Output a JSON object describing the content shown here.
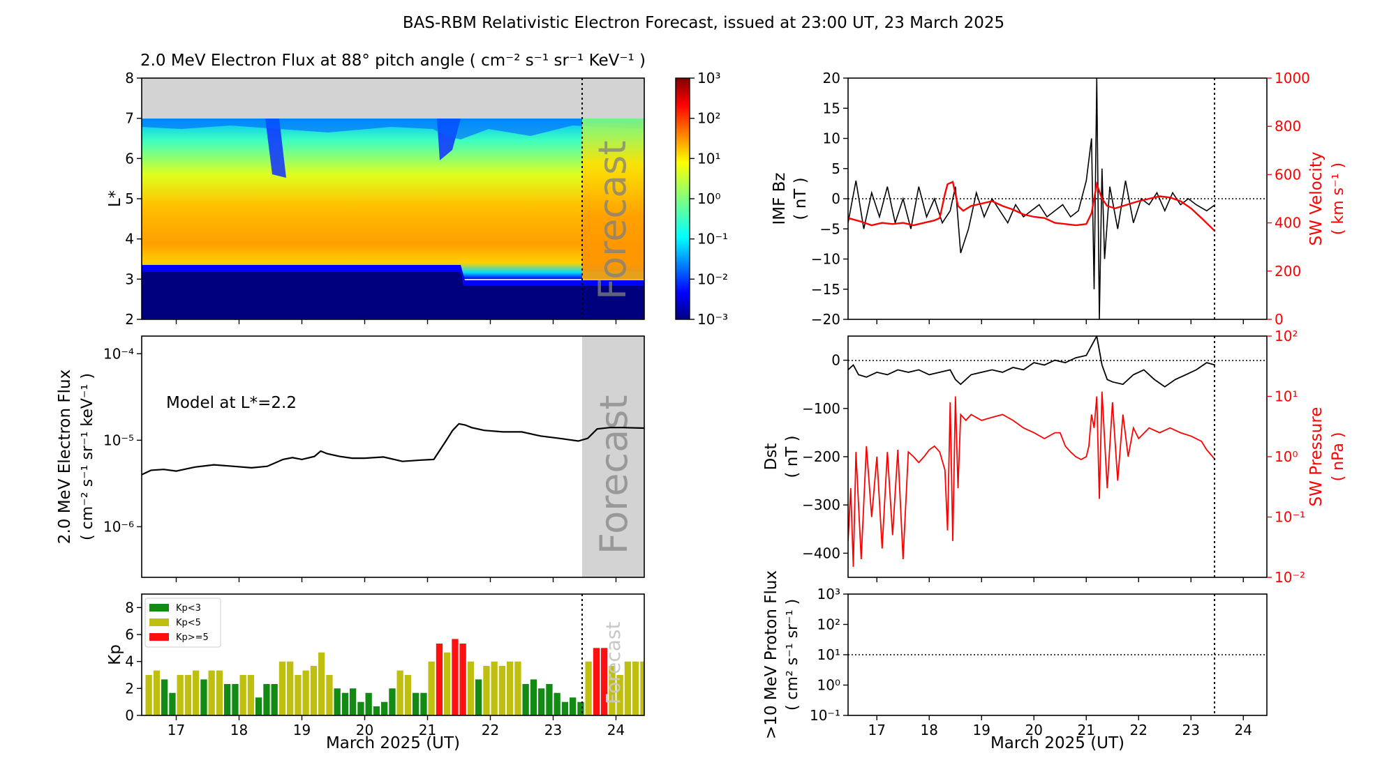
{
  "figure": {
    "title": "BAS-RBM Relativistic Electron Forecast, issued at 23:00 UT, 23 March 2025",
    "xlabel": "March 2025 (UT)"
  },
  "panels": {
    "spectrogram": {
      "title": "2.0 MeV Electron Flux at 88° pitch angle ( cm⁻² s⁻¹ sr⁻¹ KeV⁻¹ )",
      "ylabel": "L*",
      "forecast_label": "Forecast",
      "colorbar_ticks": [
        "10⁻³",
        "10⁻²",
        "10⁻¹",
        "10⁰",
        "10¹",
        "10²",
        "10³"
      ]
    },
    "flux": {
      "ylabel_line1": "2.0 MeV Electron Flux",
      "ylabel_line2": "( cm⁻² s⁻¹ sr⁻¹ keV⁻¹ )",
      "annotation": "Model at L*=2.2",
      "forecast_label": "Forecast"
    },
    "kp": {
      "ylabel": "Kp",
      "forecast_label": "Forecast",
      "legend": [
        {
          "label": "Kp<3",
          "color": "#138a13"
        },
        {
          "label": "Kp<5",
          "color": "#bfbf0f"
        },
        {
          "label": "Kp>=5",
          "color": "#ff1010"
        }
      ]
    },
    "imf": {
      "ylabel_line1": "IMF Bz",
      "ylabel_line2": "( nT )",
      "ylabel2_line1": "SW Velocity",
      "ylabel2_line2": "( km s⁻¹ )"
    },
    "dst": {
      "ylabel_line1": "Dst",
      "ylabel_line2": "( nT )",
      "ylabel2_line1": "SW Pressure",
      "ylabel2_line2": "( nPa )"
    },
    "proton": {
      "ylabel_line1": ">10 MeV Proton Flux",
      "ylabel_line2": "( cm² s⁻¹ sr⁻¹ )"
    }
  },
  "colors": {
    "velocity": "#ff0000",
    "pressure": "#ff0000",
    "bz": "#000000",
    "forecast_shade": "#d3d3d3"
  },
  "chart_data": [
    {
      "type": "heatmap",
      "title": "2.0 MeV Electron Flux at 88° pitch angle",
      "ylabel": "L*",
      "x_ticks": [
        "17",
        "18",
        "19",
        "20",
        "21",
        "22",
        "23",
        "24"
      ],
      "xlim": [
        16.45,
        24.45
      ],
      "ylim": [
        2,
        8
      ],
      "y_ticks": [
        "2",
        "3",
        "4",
        "5",
        "6",
        "7",
        "8"
      ],
      "color_scale": "log",
      "color_range": [
        0.001,
        1000
      ],
      "forecast_start": 23.46,
      "upper_boundary_L": 7.0,
      "peak_L": [
        [
          16.45,
          5.05
        ],
        [
          18.4,
          4.9
        ],
        [
          18.5,
          4.6
        ],
        [
          21.2,
          4.45
        ],
        [
          21.3,
          4.1
        ],
        [
          24.45,
          3.9
        ]
      ],
      "inner_edge_L": [
        [
          16.45,
          3.25
        ],
        [
          21.9,
          3.2
        ],
        [
          22.1,
          2.9
        ],
        [
          24.45,
          2.9
        ]
      ],
      "dropout_periods": [
        [
          18.4,
          18.7
        ],
        [
          21.2,
          21.35
        ]
      ]
    },
    {
      "type": "line",
      "title": "Model at L*=2.2",
      "yscale": "log",
      "ylim": [
        2.6e-07,
        0.00016
      ],
      "y_ticks": [
        "10⁻⁶",
        "10⁻⁵",
        "10⁻⁴"
      ],
      "x_ticks": [
        "17",
        "18",
        "19",
        "20",
        "21",
        "22",
        "23",
        "24"
      ],
      "forecast_start": 23.46,
      "x": [
        16.45,
        16.6,
        16.8,
        17.0,
        17.3,
        17.6,
        17.9,
        18.2,
        18.45,
        18.7,
        18.85,
        19.0,
        19.2,
        19.3,
        19.4,
        19.6,
        19.8,
        20.0,
        20.3,
        20.6,
        20.9,
        21.1,
        21.3,
        21.4,
        21.5,
        21.6,
        21.7,
        21.9,
        22.2,
        22.5,
        22.8,
        23.1,
        23.4,
        23.55,
        23.7,
        23.9,
        24.1,
        24.45
      ],
      "y": [
        4e-06,
        4.5e-06,
        4.6e-06,
        4.4e-06,
        4.9e-06,
        5.2e-06,
        5e-06,
        4.8e-06,
        5e-06,
        6e-06,
        6.3e-06,
        6e-06,
        6.5e-06,
        7.5e-06,
        7e-06,
        6.5e-06,
        6.2e-06,
        6.2e-06,
        6.4e-06,
        5.7e-06,
        5.9e-06,
        6e-06,
        1e-05,
        1.3e-05,
        1.55e-05,
        1.5e-05,
        1.4e-05,
        1.3e-05,
        1.25e-05,
        1.25e-05,
        1.12e-05,
        1.05e-05,
        9.8e-06,
        1.05e-05,
        1.35e-05,
        1.4e-05,
        1.4e-05,
        1.38e-05
      ]
    },
    {
      "type": "bar",
      "title": "Kp",
      "ylim": [
        0,
        9
      ],
      "y_ticks": [
        "0",
        "2",
        "4",
        "6",
        "8"
      ],
      "x_ticks": [
        "17",
        "18",
        "19",
        "20",
        "21",
        "22",
        "23",
        "24"
      ],
      "forecast_start": 23.46,
      "bar_start": 16.5,
      "bar_width_days": 0.125,
      "values": [
        3,
        3.33,
        2.67,
        1.67,
        3,
        3,
        3.33,
        2.67,
        3.33,
        3.33,
        2.33,
        2.33,
        3,
        3,
        1.33,
        2.33,
        2.33,
        4,
        4,
        3,
        3.33,
        3.67,
        4.67,
        3,
        2,
        1.67,
        2,
        1,
        1.67,
        0.67,
        1,
        2,
        3.33,
        3,
        1.67,
        1.67,
        4,
        5.33,
        4.67,
        5.67,
        5.33,
        4,
        2.67,
        3.67,
        4,
        3.67,
        4,
        4,
        2.33,
        2.67,
        2,
        2.33,
        1.67,
        1,
        1.33,
        1,
        4,
        5,
        5,
        3.67,
        3,
        4,
        4,
        4
      ]
    },
    {
      "type": "line",
      "title": "IMF Bz / SW Velocity",
      "ylabel": "IMF Bz ( nT )",
      "ylim": [
        -20,
        20
      ],
      "y_ticks": [
        "−20",
        "−15",
        "−10",
        "−5",
        "0",
        "5",
        "10",
        "15",
        "20"
      ],
      "y2label": "SW Velocity ( km s⁻¹ )",
      "y2lim": [
        0,
        1000
      ],
      "y2_ticks": [
        "0",
        "200",
        "400",
        "600",
        "800",
        "1000"
      ],
      "x_ticks": [
        "17",
        "18",
        "19",
        "20",
        "21",
        "22",
        "23",
        "24"
      ],
      "forecast_start": 23.46,
      "series": [
        {
          "name": "IMF Bz",
          "x": [
            16.45,
            16.6,
            16.75,
            16.9,
            17.05,
            17.2,
            17.35,
            17.5,
            17.65,
            17.8,
            17.95,
            18.1,
            18.25,
            18.4,
            18.5,
            18.6,
            18.75,
            18.9,
            19.05,
            19.2,
            19.35,
            19.5,
            19.65,
            19.8,
            19.95,
            20.1,
            20.25,
            20.4,
            20.55,
            20.7,
            20.85,
            21.0,
            21.1,
            21.15,
            21.2,
            21.25,
            21.3,
            21.35,
            21.45,
            21.6,
            21.75,
            21.9,
            22.05,
            22.2,
            22.35,
            22.5,
            22.65,
            22.8,
            22.95,
            23.1,
            23.3,
            23.46
          ],
          "y": [
            -4,
            3,
            -5,
            1,
            -3,
            2,
            -4,
            0,
            -5,
            2,
            -3,
            0,
            -4,
            -2,
            2,
            -9,
            -5,
            1,
            -3,
            0,
            -2,
            -4,
            -1,
            -3,
            -2,
            -1,
            -3,
            -2,
            -1,
            -3,
            -2,
            3,
            10,
            -15,
            20,
            -20,
            5,
            -10,
            2,
            -5,
            3,
            -4,
            0,
            -1,
            1,
            -2,
            1,
            -1,
            0,
            -1,
            -2,
            -1
          ]
        },
        {
          "name": "SW Velocity",
          "x": [
            16.45,
            16.7,
            16.9,
            17.1,
            17.3,
            17.5,
            17.7,
            17.9,
            18.1,
            18.2,
            18.3,
            18.35,
            18.45,
            18.55,
            18.65,
            18.8,
            19.0,
            19.2,
            19.4,
            19.6,
            19.8,
            20.0,
            20.2,
            20.4,
            20.6,
            20.8,
            21.0,
            21.1,
            21.2,
            21.3,
            21.4,
            21.55,
            21.7,
            21.85,
            22.0,
            22.2,
            22.4,
            22.6,
            22.8,
            23.0,
            23.2,
            23.46
          ],
          "y": [
            420,
            405,
            390,
            400,
            395,
            400,
            390,
            400,
            410,
            420,
            520,
            560,
            570,
            470,
            450,
            470,
            480,
            490,
            470,
            455,
            435,
            425,
            420,
            400,
            395,
            390,
            395,
            440,
            560,
            500,
            470,
            460,
            470,
            480,
            490,
            500,
            510,
            505,
            490,
            460,
            420,
            365
          ]
        }
      ]
    },
    {
      "type": "line",
      "title": "Dst / SW Pressure",
      "ylabel": "Dst ( nT )",
      "ylim": [
        -450,
        50
      ],
      "y_ticks": [
        "−400",
        "−300",
        "−200",
        "−100",
        "0"
      ],
      "y2label": "SW Pressure ( nPa )",
      "y2scale": "log",
      "y2lim": [
        0.01,
        100
      ],
      "y2_ticks": [
        "10⁻²",
        "10⁻¹",
        "10⁰",
        "10¹",
        "10²"
      ],
      "x_ticks": [
        "17",
        "18",
        "19",
        "20",
        "21",
        "22",
        "23",
        "24"
      ],
      "forecast_start": 23.46,
      "series": [
        {
          "name": "Dst",
          "x": [
            16.45,
            16.55,
            16.65,
            16.8,
            17.0,
            17.2,
            17.4,
            17.6,
            17.8,
            18.0,
            18.2,
            18.4,
            18.5,
            18.6,
            18.8,
            19.0,
            19.2,
            19.4,
            19.6,
            19.8,
            20.0,
            20.2,
            20.4,
            20.6,
            20.8,
            21.0,
            21.1,
            21.15,
            21.2,
            21.3,
            21.4,
            21.5,
            21.7,
            21.9,
            22.1,
            22.3,
            22.5,
            22.7,
            22.9,
            23.1,
            23.3,
            23.46
          ],
          "y": [
            -20,
            -10,
            -30,
            -35,
            -25,
            -30,
            -20,
            -25,
            -20,
            -30,
            -25,
            -20,
            -40,
            -50,
            -30,
            -25,
            -20,
            -25,
            -15,
            -20,
            -5,
            -10,
            0,
            -5,
            5,
            10,
            30,
            40,
            50,
            -10,
            -40,
            -45,
            -50,
            -30,
            -20,
            -40,
            -55,
            -40,
            -30,
            -20,
            -5,
            -10
          ]
        },
        {
          "name": "SW Pressure",
          "x": [
            16.45,
            16.5,
            16.55,
            16.6,
            16.7,
            16.8,
            16.9,
            17.0,
            17.1,
            17.2,
            17.3,
            17.4,
            17.5,
            17.6,
            17.7,
            17.8,
            17.9,
            18.0,
            18.1,
            18.2,
            18.3,
            18.35,
            18.4,
            18.45,
            18.5,
            18.55,
            18.6,
            18.7,
            18.8,
            19.0,
            19.2,
            19.4,
            19.6,
            19.8,
            20.0,
            20.2,
            20.4,
            20.5,
            20.6,
            20.7,
            20.8,
            20.9,
            21.0,
            21.05,
            21.1,
            21.15,
            21.2,
            21.25,
            21.3,
            21.4,
            21.5,
            21.6,
            21.7,
            21.8,
            21.9,
            22.0,
            22.2,
            22.4,
            22.6,
            22.8,
            23.0,
            23.2,
            23.3,
            23.46
          ],
          "y": [
            0.04,
            0.3,
            0.015,
            1.2,
            0.02,
            1.5,
            0.1,
            1.0,
            0.03,
            1.2,
            0.05,
            1.3,
            0.02,
            1.2,
            1.0,
            0.8,
            1.0,
            1.3,
            1.5,
            1.2,
            0.6,
            0.06,
            8,
            0.04,
            10,
            0.3,
            5,
            4,
            5,
            4,
            4.5,
            5,
            4,
            3,
            2.5,
            2,
            2.5,
            2.5,
            1.5,
            1.2,
            1.0,
            0.9,
            1.0,
            1.5,
            5,
            3,
            10,
            0.2,
            12,
            0.3,
            8,
            0.4,
            5,
            1,
            3,
            2,
            3,
            2.5,
            3,
            2.5,
            2.2,
            1.8,
            1.3,
            0.9
          ]
        }
      ]
    },
    {
      "type": "line",
      "title": ">10 MeV Proton Flux",
      "yscale": "log",
      "ylim": [
        0.1,
        1000
      ],
      "y_ticks": [
        "10⁻¹",
        "10⁰",
        "10¹",
        "10²",
        "10³"
      ],
      "x_ticks": [
        "17",
        "18",
        "19",
        "20",
        "21",
        "22",
        "23",
        "24"
      ],
      "forecast_start": 23.46,
      "threshold": 10,
      "series": []
    }
  ]
}
